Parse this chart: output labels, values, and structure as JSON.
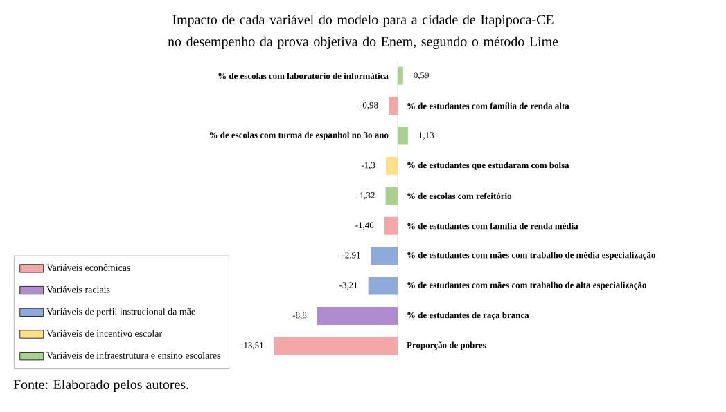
{
  "chart_data": {
    "type": "bar",
    "orientation": "horizontal",
    "title": "Impacto de cada variável do modelo para a cidade de Itapipoca-CE no desempenho da prova objetiva do Enem, segundo o método Lime",
    "categories": [
      "% de escolas com laboratório de informática",
      "% de estudantes com família de renda alta",
      "% de escolas com turma de espanhol no 3o ano",
      "% de estudantes que estudaram com bolsa",
      "% de escolas com refeitório",
      "% de estudantes com família de renda média",
      "% de estudantes com mães com trabalho de média especialização",
      "% de estudantes com mães com trabalho de alta especialização",
      "% de estudantes de raça branca",
      "Proporção de pobres"
    ],
    "series": [
      {
        "name": "Variáveis econômicas",
        "color": "#f2a7a8",
        "values": [
          null,
          -0.98,
          null,
          null,
          null,
          -1.46,
          null,
          null,
          null,
          -13.51
        ],
        "value_labels": [
          null,
          "-0,98",
          null,
          null,
          null,
          "-1,46",
          null,
          null,
          null,
          "-13,51"
        ]
      },
      {
        "name": "Variáveis raciais",
        "color": "#b08ccf",
        "values": [
          null,
          null,
          null,
          null,
          null,
          null,
          null,
          null,
          -8.8,
          null
        ],
        "value_labels": [
          null,
          null,
          null,
          null,
          null,
          null,
          null,
          null,
          "-8,8",
          null
        ]
      },
      {
        "name": "Variáveis de perfil instrucional da mãe",
        "color": "#8eaadb",
        "values": [
          null,
          null,
          null,
          null,
          null,
          null,
          -2.91,
          -3.21,
          null,
          null
        ],
        "value_labels": [
          null,
          null,
          null,
          null,
          null,
          null,
          "-2,91",
          "-3,21",
          null,
          null
        ]
      },
      {
        "name": "Variáveis de incentivo escolar",
        "color": "#ffe08a",
        "values": [
          null,
          null,
          null,
          -1.3,
          null,
          null,
          null,
          null,
          null,
          null
        ],
        "value_labels": [
          null,
          null,
          null,
          "-1,3",
          null,
          null,
          null,
          null,
          null,
          null
        ]
      },
      {
        "name": "Variáveis de infraestrutura e ensino escolares",
        "color": "#a9d08e",
        "values": [
          0.59,
          null,
          1.13,
          null,
          -1.32,
          null,
          null,
          null,
          null,
          null
        ],
        "value_labels": [
          "0,59",
          null,
          "1,13",
          null,
          "-1,32",
          null,
          null,
          null,
          null,
          null
        ]
      }
    ],
    "legend": "bottom left",
    "tick_labels": "y",
    "annotations": [
      "Fonte: Elaborado pelos autores."
    ]
  }
}
